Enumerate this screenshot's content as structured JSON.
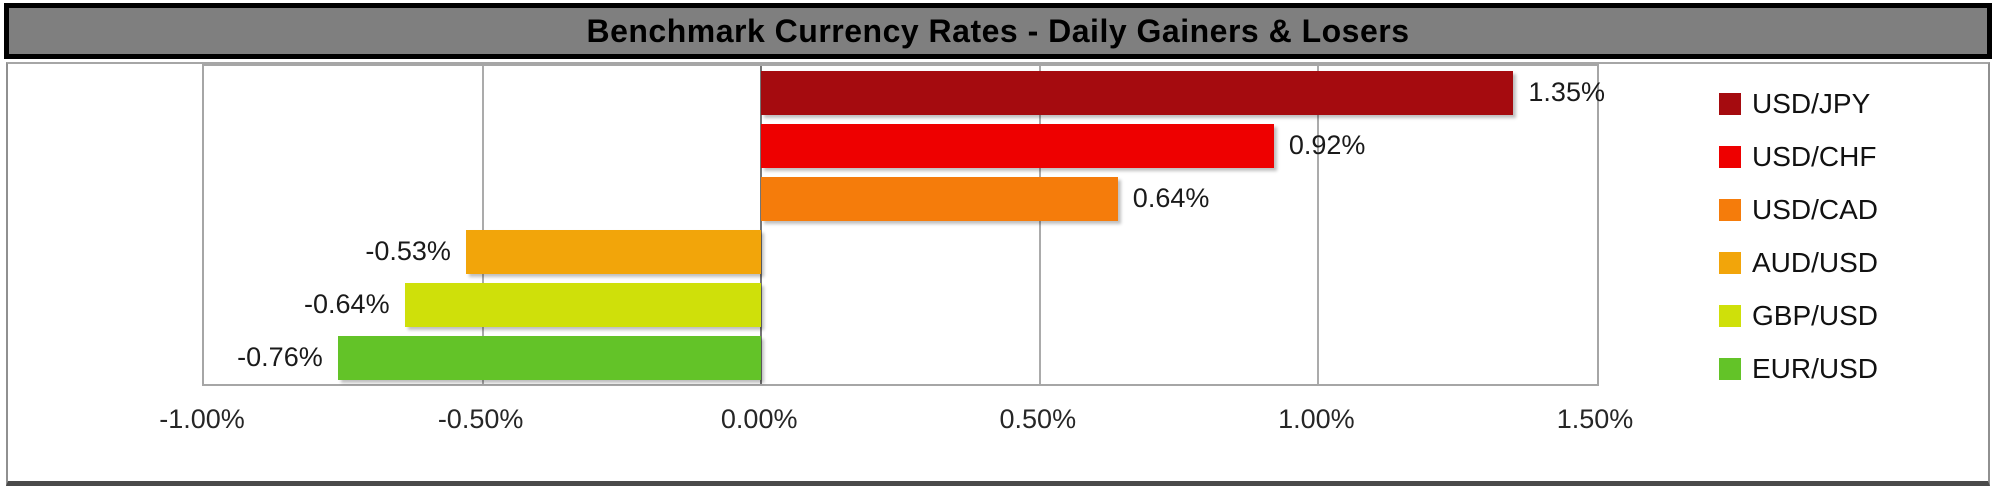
{
  "title": {
    "text": "Benchmark Currency Rates - Daily Gainers & Losers",
    "background": "#7F7F7F",
    "text_color": "#000000",
    "border_color": "#000000"
  },
  "chart_data": {
    "type": "bar",
    "orientation": "horizontal",
    "title": "Benchmark Currency Rates - Daily Gainers & Losers",
    "categories": [
      "USD/JPY",
      "USD/CHF",
      "USD/CAD",
      "AUD/USD",
      "GBP/USD",
      "EUR/USD"
    ],
    "values": [
      1.35,
      0.92,
      0.64,
      -0.53,
      -0.64,
      -0.76
    ],
    "data_labels": [
      "1.35%",
      "0.92%",
      "0.64%",
      "-0.53%",
      "-0.64%",
      "-0.76%"
    ],
    "bar_colors": [
      "#A50B0F",
      "#EE0000",
      "#F57C0B",
      "#F2A50A",
      "#CFE00A",
      "#63C328"
    ],
    "xlim": [
      -1.0,
      1.5
    ],
    "x_ticks": [
      {
        "value": -1.0,
        "label": "-1.00%"
      },
      {
        "value": -0.5,
        "label": "-0.50%"
      },
      {
        "value": 0.0,
        "label": "0.00%"
      },
      {
        "value": 0.5,
        "label": "0.50%"
      },
      {
        "value": 1.0,
        "label": "1.00%"
      },
      {
        "value": 1.5,
        "label": "1.50%"
      }
    ],
    "grid": "vertical",
    "legend": {
      "position": "right",
      "entries": [
        {
          "label": "USD/JPY",
          "color": "#A50B0F"
        },
        {
          "label": "USD/CHF",
          "color": "#EE0000"
        },
        {
          "label": "USD/CAD",
          "color": "#F57C0B"
        },
        {
          "label": "AUD/USD",
          "color": "#F2A50A"
        },
        {
          "label": "GBP/USD",
          "color": "#CFE00A"
        },
        {
          "label": "EUR/USD",
          "color": "#63C328"
        }
      ]
    }
  },
  "colors": {
    "gridline": "#ABABAB",
    "zero_line": "#757575",
    "plot_border": "#A6A6A6",
    "frame_border": "#909090",
    "frame_bottom": "#4A4A4A",
    "label_text": "#1A1A1A",
    "tick_text": "#262626"
  }
}
